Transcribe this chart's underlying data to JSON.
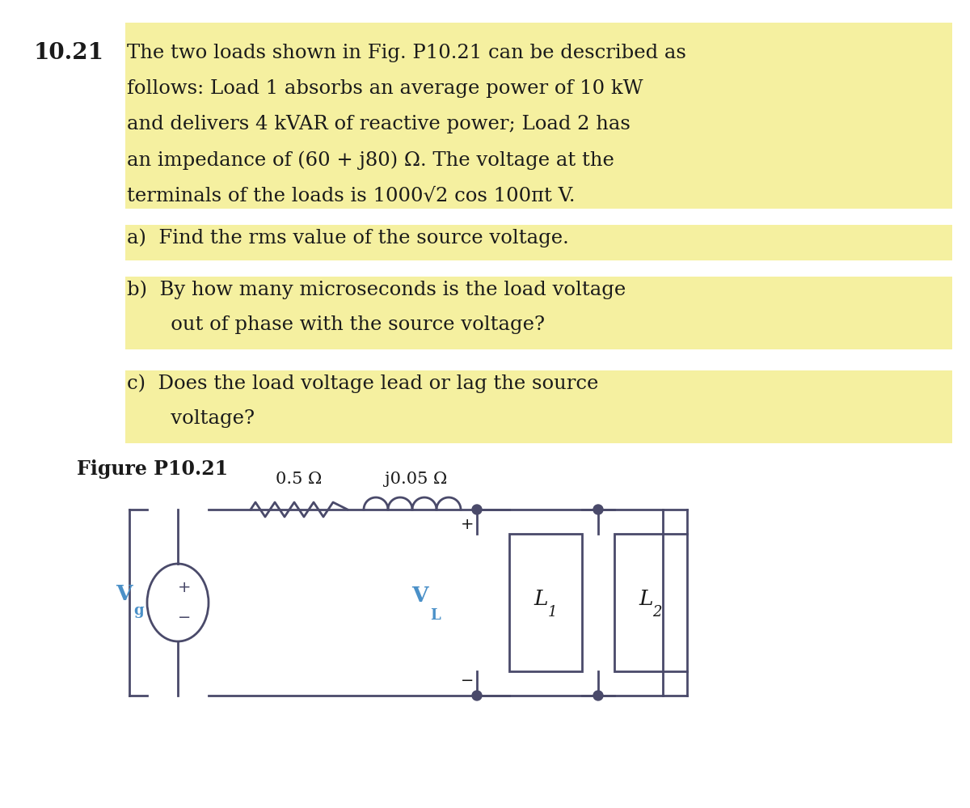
{
  "bg_color": "#ffffff",
  "highlight_color": "#f5f0a0",
  "problem_number": "10.21",
  "line1": "The two loads shown in Fig. P10.21 can be described as",
  "line2": "follows: Load 1 absorbs an average power of 10 kW",
  "line3": "and delivers 4 kVAR of reactive power; Load 2 has",
  "line4": "an impedance of (60 + j80) Ω. The voltage at the",
  "line5": "terminals of the loads is 1000√2 cos 100πt V.",
  "part_a": "a)  Find the rms value of the source voltage.",
  "part_b1": "b)  By how many microseconds is the load voltage",
  "part_b2": "       out of phase with the source voltage?",
  "part_c1": "c)  Does the load voltage lead or lag the source",
  "part_c2": "       voltage?",
  "figure_label": "Figure P10.21",
  "res_label": "0.5 Ω",
  "ind_label": "j0.05 Ω",
  "vg_label": "V",
  "vg_sub": "g",
  "vl_label": "V",
  "vl_sub": "L",
  "l1_label": "L",
  "l1_sub": "1",
  "l2_label": "L",
  "l2_sub": "2",
  "black": "#1a1a1a",
  "blue": "#4a90c8",
  "wire_color": "#4a4a6a",
  "fs_text": 17.5,
  "fs_circuit": 14
}
